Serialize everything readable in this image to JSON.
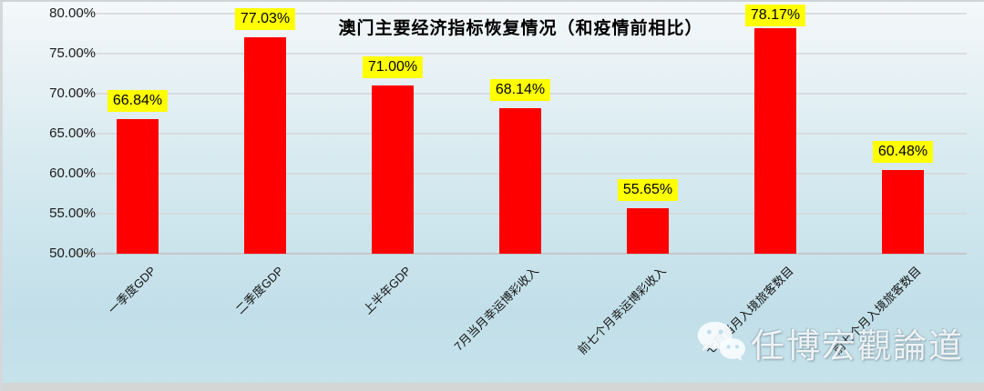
{
  "chart_data": {
    "type": "bar",
    "title": "澳门主要经济指标恢复情况（和疫情前相比）",
    "categories": [
      "一季度GDP",
      "二季度GDP",
      "上半年GDP",
      "7月当月幸运博彩收入",
      "前七个月幸运博彩收入",
      "七月当月入境旅客数目",
      "前七个月入境旅客数目"
    ],
    "values": [
      66.84,
      77.03,
      71.0,
      68.14,
      55.65,
      78.17,
      60.48
    ],
    "data_labels": [
      "66.84%",
      "77.03%",
      "71.00%",
      "68.14%",
      "55.65%",
      "78.17%",
      "60.48%"
    ],
    "xlabel": "",
    "ylabel": "",
    "ylim": [
      50,
      80
    ],
    "ytick_step": 5,
    "ytick_labels": [
      "50.00%",
      "55.00%",
      "60.00%",
      "65.00%",
      "70.00%",
      "75.00%",
      "80.00%"
    ],
    "grid": true,
    "legend_position": "none",
    "bar_color": "#ff0000",
    "data_label_bg": "#ffff00",
    "data_label_color": "#000000"
  },
  "watermark": {
    "text": "任博宏觀論道",
    "icon": "wechat-icon"
  }
}
